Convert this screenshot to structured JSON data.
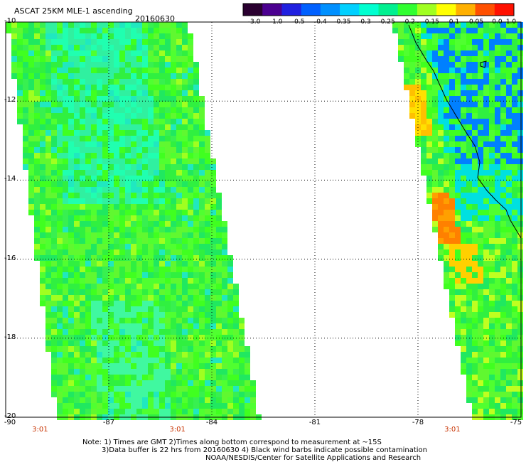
{
  "header": {
    "title": "ASCAT 25KM MLE-1 ascending",
    "date": "20160630"
  },
  "map": {
    "lon_range": [
      -90,
      -75
    ],
    "lat_range": [
      -20,
      -10
    ],
    "lon_ticks": [
      "-90",
      "-87",
      "-84",
      "-81",
      "-78",
      "-75"
    ],
    "lat_ticks": [
      "-10",
      "-12",
      "-14",
      "-16",
      "-18",
      "-20"
    ],
    "time_labels": [
      {
        "text": "3:01",
        "lon": -89
      },
      {
        "text": "3:01",
        "lon": -85
      },
      {
        "text": "3:01",
        "lon": -77
      }
    ]
  },
  "colorbar": {
    "labels": [
      "-3.0",
      "-1.0",
      "-0.5",
      "-0.4",
      "-0.35",
      "-0.3",
      "-0.25",
      "-0.2",
      "-0.15",
      "-0.1",
      "-0.05",
      "0.0",
      "1.0"
    ],
    "colors": [
      "#2a0030",
      "#4b0090",
      "#2020e0",
      "#0060ff",
      "#0090ff",
      "#00d0ff",
      "#00ffd0",
      "#00f090",
      "#30ff30",
      "#a0ff20",
      "#ffff00",
      "#ffb000",
      "#ff5000",
      "#ff1000"
    ]
  },
  "notes": {
    "line1": "Note: 1) Times are GMT 2)Times along bottom correspond to measurement at ~15S",
    "line2": "3)Data buffer is 22 hrs from 20160630 4) Black wind barbs indicate possible contamination",
    "line3": "NOAA/NESDIS/Center for Satellite Applications and Research"
  }
}
